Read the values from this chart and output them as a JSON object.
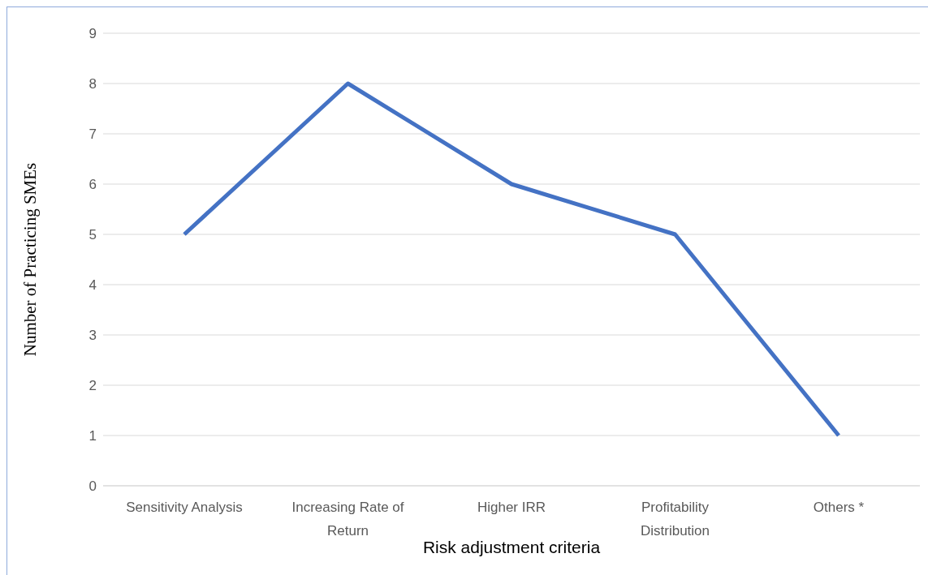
{
  "chart_data": {
    "type": "line",
    "xlabel": "Risk adjustment criteria",
    "ylabel": "Number of Practicing SMEs",
    "categories": [
      "Sensitivity Analysis",
      "Increasing Rate of Return",
      "Higher IRR",
      "Profitability Distribution",
      "Others *"
    ],
    "series": [
      {
        "color": "#4472c4",
        "values": [
          5,
          8,
          6,
          5,
          1
        ]
      }
    ],
    "ylim": [
      0,
      9
    ],
    "yticks": [
      0,
      1,
      2,
      3,
      4,
      5,
      6,
      7,
      8,
      9
    ],
    "grid": "y",
    "legend": false,
    "marker": "none",
    "line_style": "solid"
  }
}
